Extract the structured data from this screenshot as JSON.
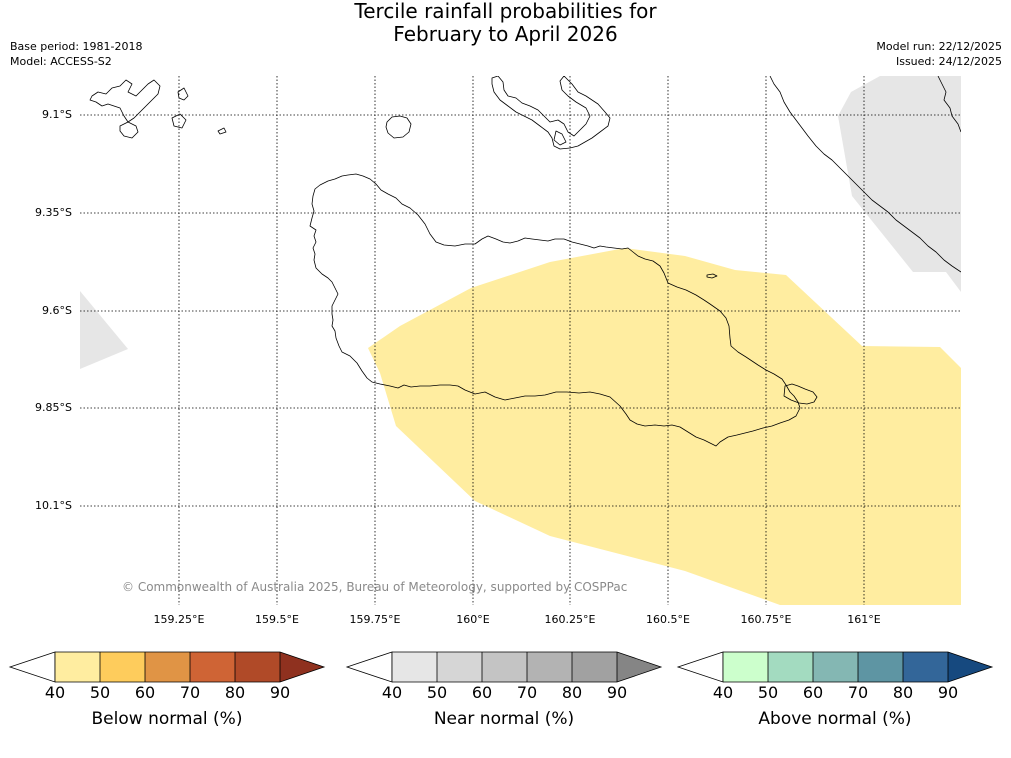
{
  "title": {
    "line1": "Tercile rainfall probabilities for",
    "line2": "February to April 2026"
  },
  "meta": {
    "base_period": "Base period: 1981-2018",
    "model": "Model: ACCESS-S2",
    "model_run": "Model run: 22/12/2025",
    "issued": "Issued: 24/12/2025"
  },
  "axes": {
    "lat_labels": [
      "9.1°S",
      "9.35°S",
      "9.6°S",
      "9.85°S",
      "10.1°S"
    ],
    "lon_labels": [
      "159.25°E",
      "159.5°E",
      "159.75°E",
      "160°E",
      "160.25°E",
      "160.5°E",
      "160.75°E",
      "161°E"
    ],
    "lat_values": [
      -9.1,
      -9.35,
      -9.6,
      -9.85,
      -10.1
    ],
    "lon_values": [
      159.25,
      159.5,
      159.75,
      160.0,
      160.25,
      160.5,
      160.75,
      161.0
    ],
    "lon_range": [
      159.0,
      161.25
    ],
    "lat_range": [
      -10.34,
      -9.0
    ],
    "grid": "dotted"
  },
  "copyright": "© Commonwealth of Australia 2025, Bureau of Meteorology, supported by COSPPac",
  "colorbars": [
    {
      "title": "Below normal (%)",
      "ticks": [
        "40",
        "50",
        "60",
        "70",
        "80",
        "90"
      ],
      "colors": [
        "#ffffff",
        "#ffeda0",
        "#fecc5c",
        "#e09445",
        "#cf6435",
        "#b04a28",
        "#8f311f"
      ]
    },
    {
      "title": "Near normal (%)",
      "ticks": [
        "40",
        "50",
        "60",
        "70",
        "80",
        "90"
      ],
      "colors": [
        "#ffffff",
        "#e6e6e6",
        "#d6d6d6",
        "#c4c4c4",
        "#b3b3b3",
        "#a1a1a1",
        "#858585"
      ]
    },
    {
      "title": "Above normal (%)",
      "ticks": [
        "40",
        "50",
        "60",
        "70",
        "80",
        "90"
      ],
      "colors": [
        "#ffffff",
        "#ccffcc",
        "#a3dbc0",
        "#84b7b3",
        "#5e95a3",
        "#336699",
        "#16497f"
      ]
    }
  ],
  "map_fill": {
    "below_normal_50_60": "#ffeda0",
    "near_normal_50_60": "#e6e6e6"
  }
}
